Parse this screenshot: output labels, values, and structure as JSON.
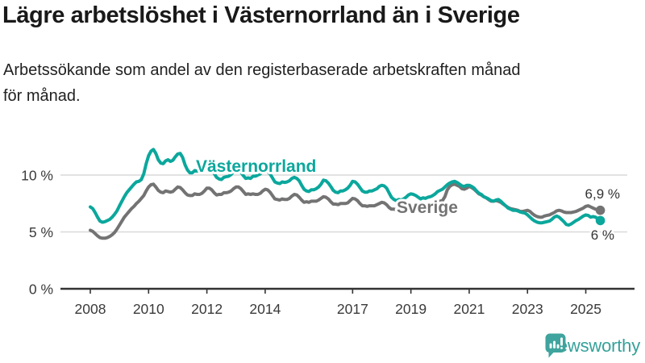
{
  "header": {
    "title": "Lägre arbetslöshet i Västernorrland än i Sverige",
    "subtitle_line1": "Arbetssökande som andel av den registerbaserade arbetskraften månad",
    "subtitle_line2": "för månad."
  },
  "chart_data": {
    "type": "line",
    "title": "Lägre arbetslöshet i Västernorrland än i Sverige",
    "subtitle": "Arbetssökande som andel av den registerbaserade arbetskraften månad för månad.",
    "x_unit": "months, January 2008 – July 2025",
    "x_range": [
      2008.0,
      2025.5
    ],
    "x_ticks": [
      2008,
      2010,
      2012,
      2014,
      2017,
      2019,
      2021,
      2023,
      2025
    ],
    "y_ticks": [
      {
        "value": 0,
        "label": "0 %"
      },
      {
        "value": 5,
        "label": "5 %"
      },
      {
        "value": 10,
        "label": "10 %"
      }
    ],
    "ylim": [
      0,
      13
    ],
    "grid": "horizontal",
    "legend": "inline-labels",
    "series": [
      {
        "name": "Västernorrland",
        "color": "#0ba79c",
        "end_label": "6 %",
        "end_value": 6.0,
        "values": [
          7.2,
          7.05,
          6.7,
          6.3,
          5.95,
          5.85,
          5.9,
          6.0,
          6.1,
          6.3,
          6.55,
          6.85,
          7.3,
          7.7,
          8.1,
          8.45,
          8.7,
          8.95,
          9.2,
          9.4,
          9.45,
          9.6,
          10.1,
          11.0,
          11.7,
          12.1,
          12.25,
          11.9,
          11.35,
          11.05,
          11.0,
          11.25,
          11.35,
          11.2,
          11.3,
          11.6,
          11.85,
          11.9,
          11.55,
          10.9,
          10.45,
          10.2,
          10.2,
          10.4,
          10.35,
          10.3,
          10.45,
          10.6,
          10.8,
          10.75,
          10.55,
          10.15,
          9.8,
          9.65,
          9.6,
          9.8,
          9.85,
          9.9,
          10.05,
          10.3,
          10.5,
          10.45,
          10.25,
          9.95,
          9.7,
          9.75,
          9.7,
          9.9,
          9.9,
          10.0,
          10.1,
          10.3,
          10.4,
          10.3,
          10.1,
          9.75,
          9.4,
          9.3,
          9.25,
          9.4,
          9.35,
          9.4,
          9.5,
          9.7,
          9.8,
          9.7,
          9.5,
          9.1,
          8.75,
          8.6,
          8.55,
          8.7,
          8.7,
          8.8,
          8.95,
          9.2,
          9.55,
          9.5,
          9.3,
          9.0,
          8.65,
          8.5,
          8.45,
          8.6,
          8.6,
          8.7,
          8.85,
          9.1,
          9.45,
          9.4,
          9.2,
          8.9,
          8.6,
          8.5,
          8.5,
          8.6,
          8.6,
          8.7,
          8.8,
          9.0,
          9.1,
          9.05,
          8.85,
          8.45,
          8.05,
          7.85,
          7.75,
          7.85,
          7.8,
          7.9,
          8.05,
          8.25,
          8.35,
          8.3,
          8.2,
          8.05,
          7.9,
          8.0,
          7.95,
          8.05,
          8.1,
          8.2,
          8.35,
          8.55,
          8.65,
          8.75,
          8.95,
          9.15,
          9.3,
          9.4,
          9.45,
          9.35,
          9.2,
          9.05,
          9.0,
          9.1,
          9.1,
          9.0,
          8.85,
          8.6,
          8.4,
          8.3,
          8.1,
          8.0,
          7.9,
          7.75,
          7.7,
          7.8,
          7.85,
          7.7,
          7.5,
          7.3,
          7.1,
          7.0,
          6.9,
          6.9,
          6.85,
          6.75,
          6.7,
          6.65,
          6.5,
          6.3,
          6.1,
          5.95,
          5.85,
          5.8,
          5.8,
          5.85,
          5.9,
          5.95,
          6.1,
          6.3,
          6.4,
          6.3,
          6.1,
          5.9,
          5.65,
          5.6,
          5.7,
          5.85,
          6.0,
          6.1,
          6.25,
          6.4,
          6.5,
          6.45,
          6.3,
          6.35,
          6.3,
          6.15,
          6.0
        ]
      },
      {
        "name": "Sverige",
        "color": "#737373",
        "end_label": "6,9 %",
        "end_value": 6.9,
        "values": [
          5.15,
          5.05,
          4.85,
          4.65,
          4.5,
          4.45,
          4.45,
          4.5,
          4.6,
          4.75,
          4.95,
          5.25,
          5.6,
          5.95,
          6.3,
          6.55,
          6.8,
          7.05,
          7.25,
          7.5,
          7.7,
          7.95,
          8.2,
          8.6,
          8.95,
          9.15,
          9.2,
          8.95,
          8.65,
          8.5,
          8.45,
          8.6,
          8.55,
          8.5,
          8.55,
          8.75,
          8.95,
          8.9,
          8.7,
          8.45,
          8.25,
          8.2,
          8.2,
          8.35,
          8.3,
          8.3,
          8.4,
          8.6,
          8.85,
          8.85,
          8.7,
          8.45,
          8.25,
          8.3,
          8.3,
          8.45,
          8.45,
          8.5,
          8.6,
          8.8,
          8.95,
          8.95,
          8.8,
          8.55,
          8.3,
          8.35,
          8.3,
          8.35,
          8.3,
          8.3,
          8.4,
          8.6,
          8.75,
          8.7,
          8.5,
          8.2,
          7.9,
          7.85,
          7.8,
          7.9,
          7.85,
          7.85,
          7.95,
          8.15,
          8.3,
          8.25,
          8.05,
          7.8,
          7.6,
          7.65,
          7.6,
          7.7,
          7.7,
          7.7,
          7.8,
          7.95,
          8.1,
          8.05,
          7.9,
          7.65,
          7.45,
          7.45,
          7.4,
          7.5,
          7.5,
          7.5,
          7.55,
          7.75,
          7.95,
          7.9,
          7.75,
          7.5,
          7.3,
          7.3,
          7.25,
          7.3,
          7.3,
          7.3,
          7.4,
          7.5,
          7.6,
          7.55,
          7.4,
          7.15,
          7.0,
          7.0,
          6.95,
          7.0,
          6.95,
          6.95,
          7.0,
          7.15,
          7.3,
          7.25,
          7.15,
          7.0,
          6.95,
          7.0,
          7.05,
          7.1,
          7.1,
          7.2,
          7.35,
          7.55,
          7.7,
          7.75,
          8.1,
          8.7,
          9.0,
          9.15,
          9.2,
          9.1,
          9.0,
          8.8,
          8.75,
          8.85,
          9.0,
          8.9,
          8.75,
          8.55,
          8.35,
          8.25,
          8.1,
          8.0,
          7.85,
          7.7,
          7.7,
          7.75,
          7.7,
          7.6,
          7.45,
          7.3,
          7.15,
          7.05,
          7.0,
          6.95,
          6.9,
          6.8,
          6.8,
          6.85,
          6.9,
          6.8,
          6.6,
          6.45,
          6.35,
          6.3,
          6.3,
          6.4,
          6.45,
          6.5,
          6.6,
          6.7,
          6.85,
          6.9,
          6.85,
          6.75,
          6.7,
          6.7,
          6.7,
          6.75,
          6.8,
          6.9,
          7.0,
          7.1,
          7.25,
          7.3,
          7.2,
          7.1,
          7.0,
          6.95,
          6.9
        ]
      }
    ]
  },
  "branding": {
    "logo_text": "Newsworthy",
    "logo_color": "#3fa49d"
  }
}
